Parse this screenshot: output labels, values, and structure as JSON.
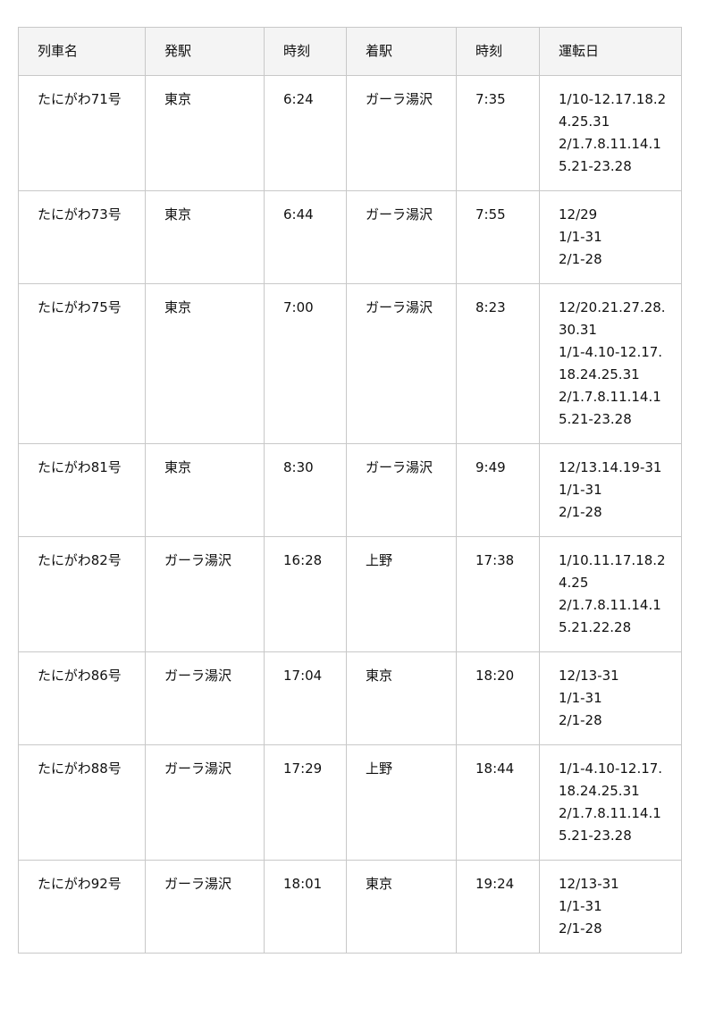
{
  "table": {
    "headers": [
      "列車名",
      "発駅",
      "時刻",
      "着駅",
      "時刻",
      "運転日"
    ],
    "rows": [
      {
        "train": "たにがわ71号",
        "from": "東京",
        "dep": "6:24",
        "to": "ガーラ湯沢",
        "arr": "7:35",
        "days": [
          "1/10-12.17.18.24.25.31",
          "2/1.7.8.11.14.15.21-23.28"
        ]
      },
      {
        "train": "たにがわ73号",
        "from": "東京",
        "dep": "6:44",
        "to": "ガーラ湯沢",
        "arr": "7:55",
        "days": [
          "12/29",
          "1/1-31",
          "2/1-28"
        ]
      },
      {
        "train": "たにがわ75号",
        "from": "東京",
        "dep": "7:00",
        "to": "ガーラ湯沢",
        "arr": "8:23",
        "days": [
          "12/20.21.27.28.30.31",
          "1/1-4.10-12.17.18.24.25.31",
          "2/1.7.8.11.14.15.21-23.28"
        ]
      },
      {
        "train": "たにがわ81号",
        "from": "東京",
        "dep": "8:30",
        "to": "ガーラ湯沢",
        "arr": "9:49",
        "days": [
          "12/13.14.19-31",
          "1/1-31",
          "2/1-28"
        ]
      },
      {
        "train": "たにがわ82号",
        "from": "ガーラ湯沢",
        "dep": "16:28",
        "to": "上野",
        "arr": "17:38",
        "days": [
          "1/10.11.17.18.24.25",
          "2/1.7.8.11.14.15.21.22.28"
        ]
      },
      {
        "train": "たにがわ86号",
        "from": "ガーラ湯沢",
        "dep": "17:04",
        "to": "東京",
        "arr": "18:20",
        "days": [
          "12/13-31",
          "1/1-31",
          "2/1-28"
        ]
      },
      {
        "train": "たにがわ88号",
        "from": "ガーラ湯沢",
        "dep": "17:29",
        "to": "上野",
        "arr": "18:44",
        "days": [
          "1/1-4.10-12.17.18.24.25.31",
          "2/1.7.8.11.14.15.21-23.28"
        ]
      },
      {
        "train": "たにがわ92号",
        "from": "ガーラ湯沢",
        "dep": "18:01",
        "to": "東京",
        "arr": "19:24",
        "days": [
          "12/13-31",
          "1/1-31",
          "2/1-28"
        ]
      }
    ]
  }
}
